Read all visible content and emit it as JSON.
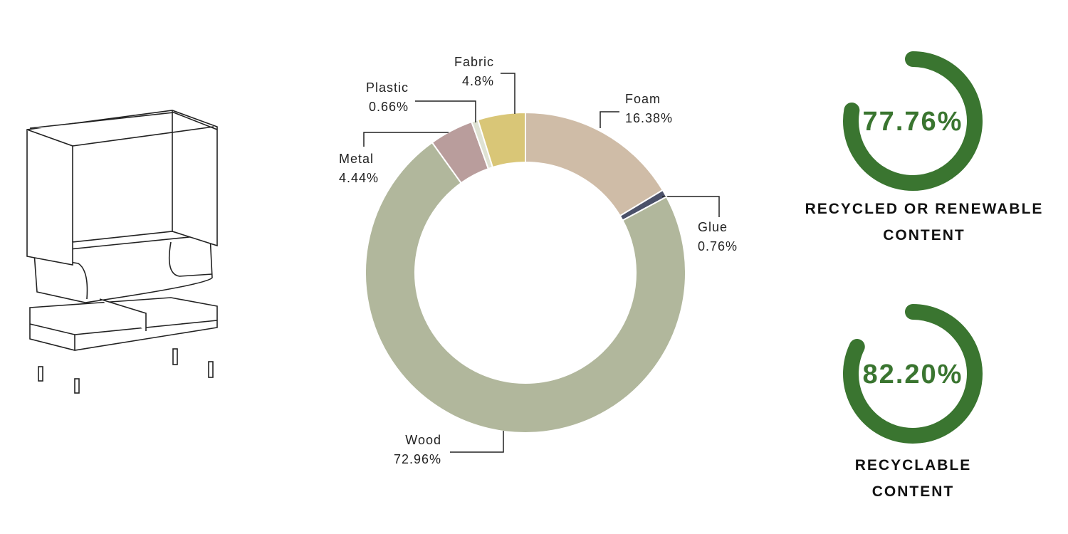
{
  "chart_data": [
    {
      "type": "donut",
      "categories": [
        "Foam",
        "Glue",
        "Wood",
        "Metal",
        "Plastic",
        "Fabric"
      ],
      "values": [
        16.38,
        0.76,
        72.96,
        4.44,
        0.66,
        4.8
      ],
      "value_labels": [
        "16.38%",
        "0.76%",
        "72.96%",
        "4.44%",
        "0.66%",
        "4.8%"
      ],
      "colors": [
        "#cfbca7",
        "#4b5169",
        "#b1b79c",
        "#b99d9c",
        "#dfe2d3",
        "#d9c677"
      ]
    },
    {
      "type": "gauge",
      "title": "RECYCLED OR RENEWABLE CONTENT",
      "values": [
        77.76
      ],
      "value_labels": [
        "77.76%"
      ],
      "ylim": [
        0,
        100
      ],
      "color": "#3a7530"
    },
    {
      "type": "gauge",
      "title": "RECYCLABLE CONTENT",
      "values": [
        82.2
      ],
      "value_labels": [
        "82.20%"
      ],
      "ylim": [
        0,
        100
      ],
      "color": "#3a7530"
    }
  ]
}
